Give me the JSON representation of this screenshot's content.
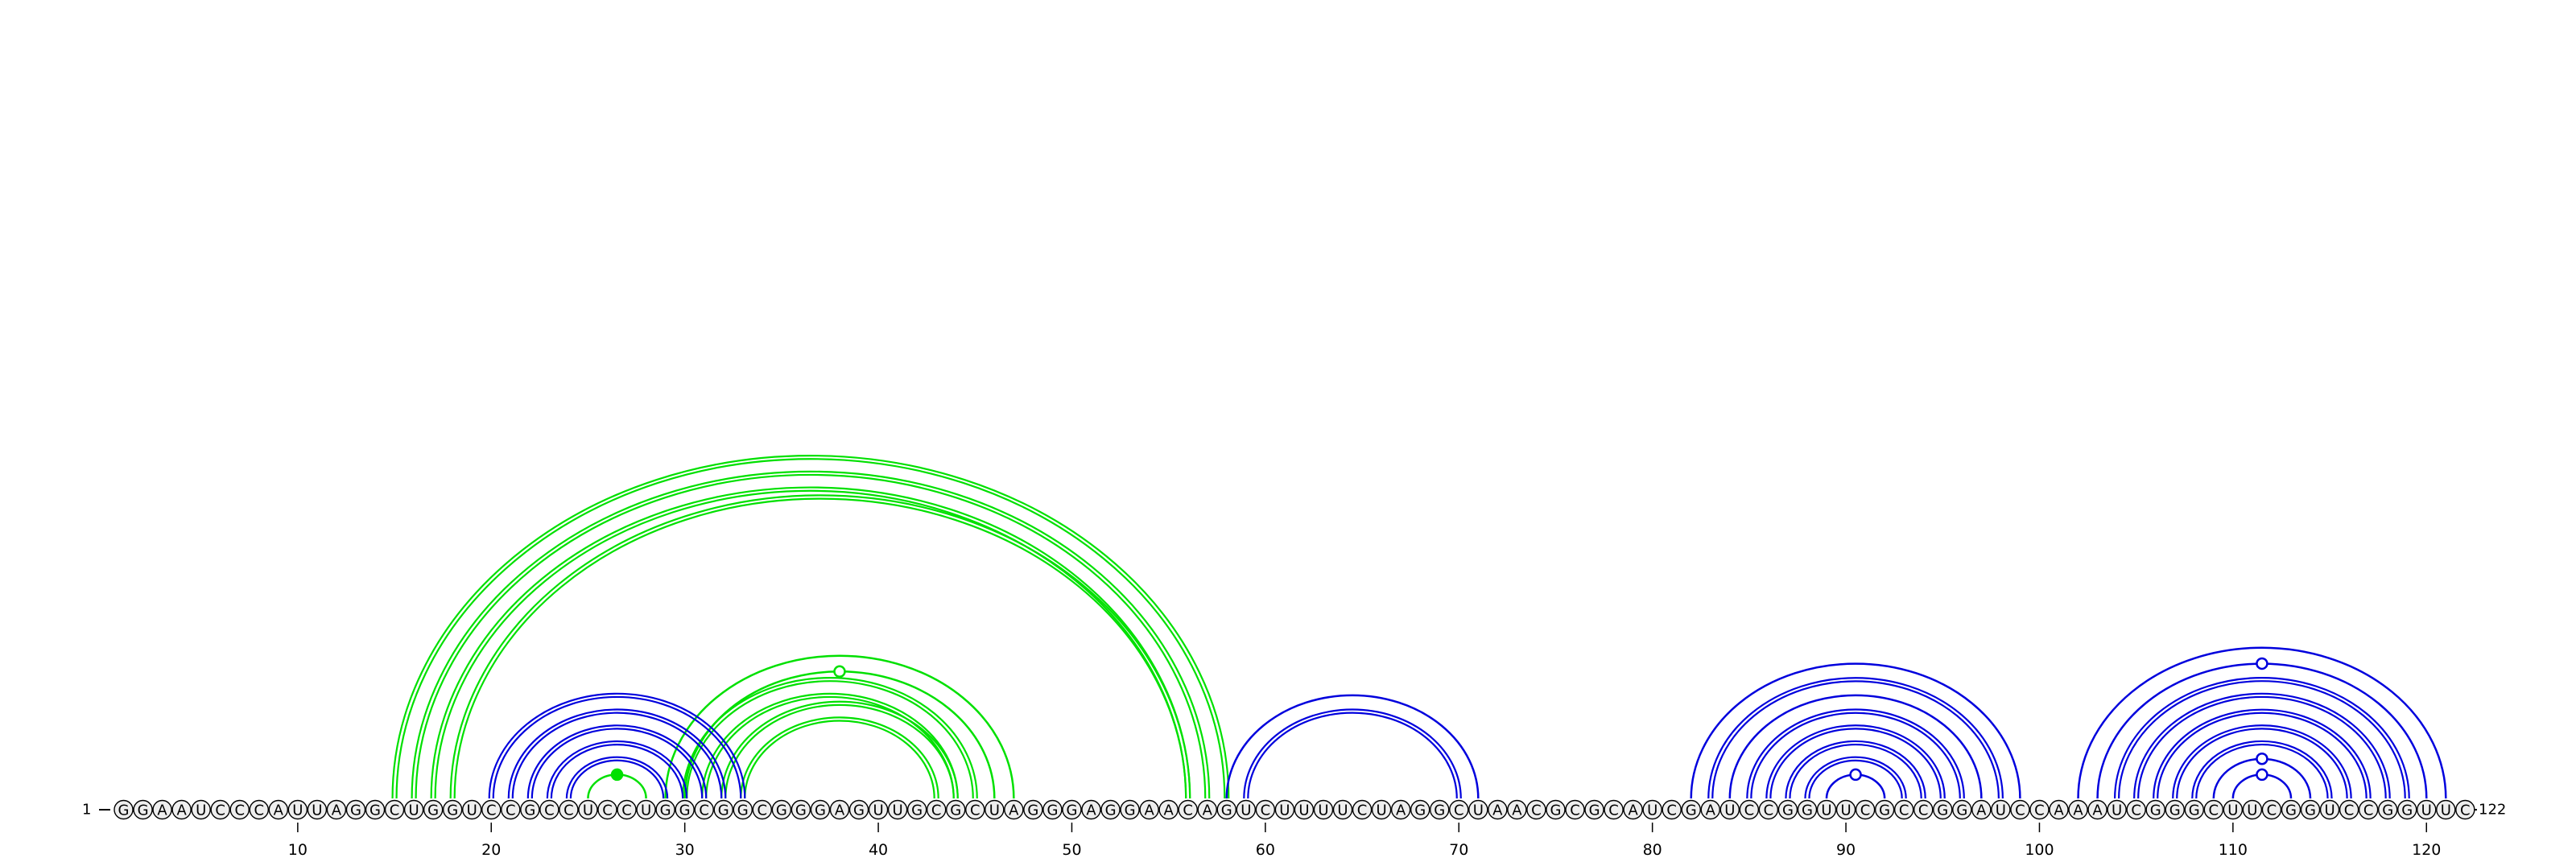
{
  "sequence": "GGAAUCCCAUUAGGCUGGUCCGCCUCCUGGCGGCGGGAGUUGCGCUAGGGAGGAACAGUCUUUUCUAGGCUAACGCGCAUCGAUCCGGUUCGCCGGAUCCAAAUCGGGCUUCGGUCCGGUUC",
  "start_label": "1",
  "end_label": "122",
  "tick_labels": [
    "10",
    "20",
    "30",
    "40",
    "50",
    "60",
    "70",
    "80",
    "90",
    "100",
    "110",
    "120"
  ],
  "colors": {
    "green_arcs": "#00e000",
    "blue_arcs": "#0000dd",
    "nucleotide_circle_fill": "#eeeeee",
    "text": "#000000"
  },
  "arcs": [
    {
      "i": 15,
      "j": 58,
      "color": "green",
      "double": true
    },
    {
      "i": 16,
      "j": 57,
      "color": "green",
      "double": true
    },
    {
      "i": 17,
      "j": 56,
      "color": "green",
      "double": true
    },
    {
      "i": 18,
      "j": 56,
      "color": "green",
      "double": true
    },
    {
      "i": 25,
      "j": 28,
      "color": "green",
      "double": false,
      "marker": "filled"
    },
    {
      "i": 29,
      "j": 47,
      "color": "green",
      "double": false
    },
    {
      "i": 30,
      "j": 46,
      "color": "green",
      "double": false,
      "marker": "open"
    },
    {
      "i": 30,
      "j": 45,
      "color": "green",
      "double": true
    },
    {
      "i": 31,
      "j": 44,
      "color": "green",
      "double": true
    },
    {
      "i": 32,
      "j": 44,
      "color": "green",
      "double": true
    },
    {
      "i": 33,
      "j": 43,
      "color": "green",
      "double": true
    },
    {
      "i": 20,
      "j": 33,
      "color": "blue",
      "double": true
    },
    {
      "i": 21,
      "j": 32,
      "color": "blue",
      "double": true
    },
    {
      "i": 22,
      "j": 31,
      "color": "blue",
      "double": true
    },
    {
      "i": 23,
      "j": 30,
      "color": "blue",
      "double": true
    },
    {
      "i": 24,
      "j": 29,
      "color": "blue",
      "double": true
    },
    {
      "i": 58,
      "j": 71,
      "color": "blue",
      "double": false
    },
    {
      "i": 59,
      "j": 70,
      "color": "blue",
      "double": true
    },
    {
      "i": 82,
      "j": 99,
      "color": "blue",
      "double": false
    },
    {
      "i": 83,
      "j": 98,
      "color": "blue",
      "double": true
    },
    {
      "i": 84,
      "j": 97,
      "color": "blue",
      "double": false
    },
    {
      "i": 85,
      "j": 96,
      "color": "blue",
      "double": true
    },
    {
      "i": 86,
      "j": 95,
      "color": "blue",
      "double": true
    },
    {
      "i": 87,
      "j": 94,
      "color": "blue",
      "double": true
    },
    {
      "i": 88,
      "j": 93,
      "color": "blue",
      "double": true
    },
    {
      "i": 89,
      "j": 92,
      "color": "blue",
      "double": false,
      "marker": "open"
    },
    {
      "i": 102,
      "j": 121,
      "color": "blue",
      "double": false
    },
    {
      "i": 103,
      "j": 120,
      "color": "blue",
      "double": false,
      "marker": "open"
    },
    {
      "i": 104,
      "j": 119,
      "color": "blue",
      "double": true
    },
    {
      "i": 105,
      "j": 118,
      "color": "blue",
      "double": true
    },
    {
      "i": 106,
      "j": 117,
      "color": "blue",
      "double": true
    },
    {
      "i": 107,
      "j": 116,
      "color": "blue",
      "double": true
    },
    {
      "i": 108,
      "j": 115,
      "color": "blue",
      "double": true
    },
    {
      "i": 109,
      "j": 114,
      "color": "blue",
      "double": false,
      "marker": "open"
    },
    {
      "i": 110,
      "j": 113,
      "color": "blue",
      "double": false,
      "marker": "open"
    }
  ]
}
